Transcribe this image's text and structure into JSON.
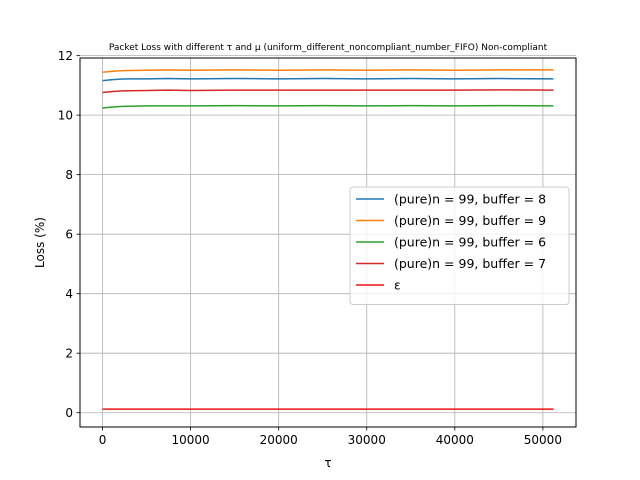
{
  "chart_data": {
    "type": "line",
    "title": "Packet Loss with different τ and μ (uniform_different_noncompliant_number_FIFO) Non-compliant",
    "xlabel": "τ",
    "ylabel": "Loss (%)",
    "xlim": [
      -2560,
      53760
    ],
    "ylim": [
      -0.48,
      11.92
    ],
    "xticks": [
      0,
      10000,
      20000,
      30000,
      40000,
      50000
    ],
    "yticks": [
      0,
      2,
      4,
      6,
      8,
      10,
      12
    ],
    "grid": true,
    "legend_position": "center-right",
    "x": [
      0,
      1000,
      2000,
      3000,
      5000,
      7500,
      10000,
      15000,
      20000,
      25000,
      30000,
      35000,
      40000,
      45000,
      51200
    ],
    "series": [
      {
        "name": "(pure)n = 99, buffer = 8",
        "color": "#1f77b4",
        "values": [
          11.16,
          11.19,
          11.21,
          11.22,
          11.22,
          11.23,
          11.22,
          11.23,
          11.22,
          11.23,
          11.22,
          11.23,
          11.22,
          11.23,
          11.22
        ]
      },
      {
        "name": "(pure)n = 99, buffer = 9",
        "color": "#ff7f0e",
        "values": [
          11.44,
          11.47,
          11.49,
          11.5,
          11.51,
          11.52,
          11.51,
          11.52,
          11.51,
          11.52,
          11.51,
          11.52,
          11.51,
          11.52,
          11.52
        ]
      },
      {
        "name": "(pure)n = 99, buffer = 6",
        "color": "#2ca02c",
        "values": [
          10.24,
          10.27,
          10.29,
          10.3,
          10.31,
          10.31,
          10.31,
          10.32,
          10.31,
          10.32,
          10.31,
          10.32,
          10.31,
          10.32,
          10.31
        ]
      },
      {
        "name": "(pure)n = 99, buffer = 7",
        "color": "#d62728",
        "values": [
          10.76,
          10.79,
          10.81,
          10.82,
          10.83,
          10.84,
          10.83,
          10.84,
          10.84,
          10.84,
          10.84,
          10.84,
          10.84,
          10.85,
          10.84
        ]
      },
      {
        "name": "ε",
        "color": "#ee1111",
        "values": [
          0.12,
          0.12,
          0.12,
          0.12,
          0.12,
          0.12,
          0.12,
          0.12,
          0.12,
          0.12,
          0.12,
          0.12,
          0.12,
          0.12,
          0.12
        ]
      }
    ]
  }
}
